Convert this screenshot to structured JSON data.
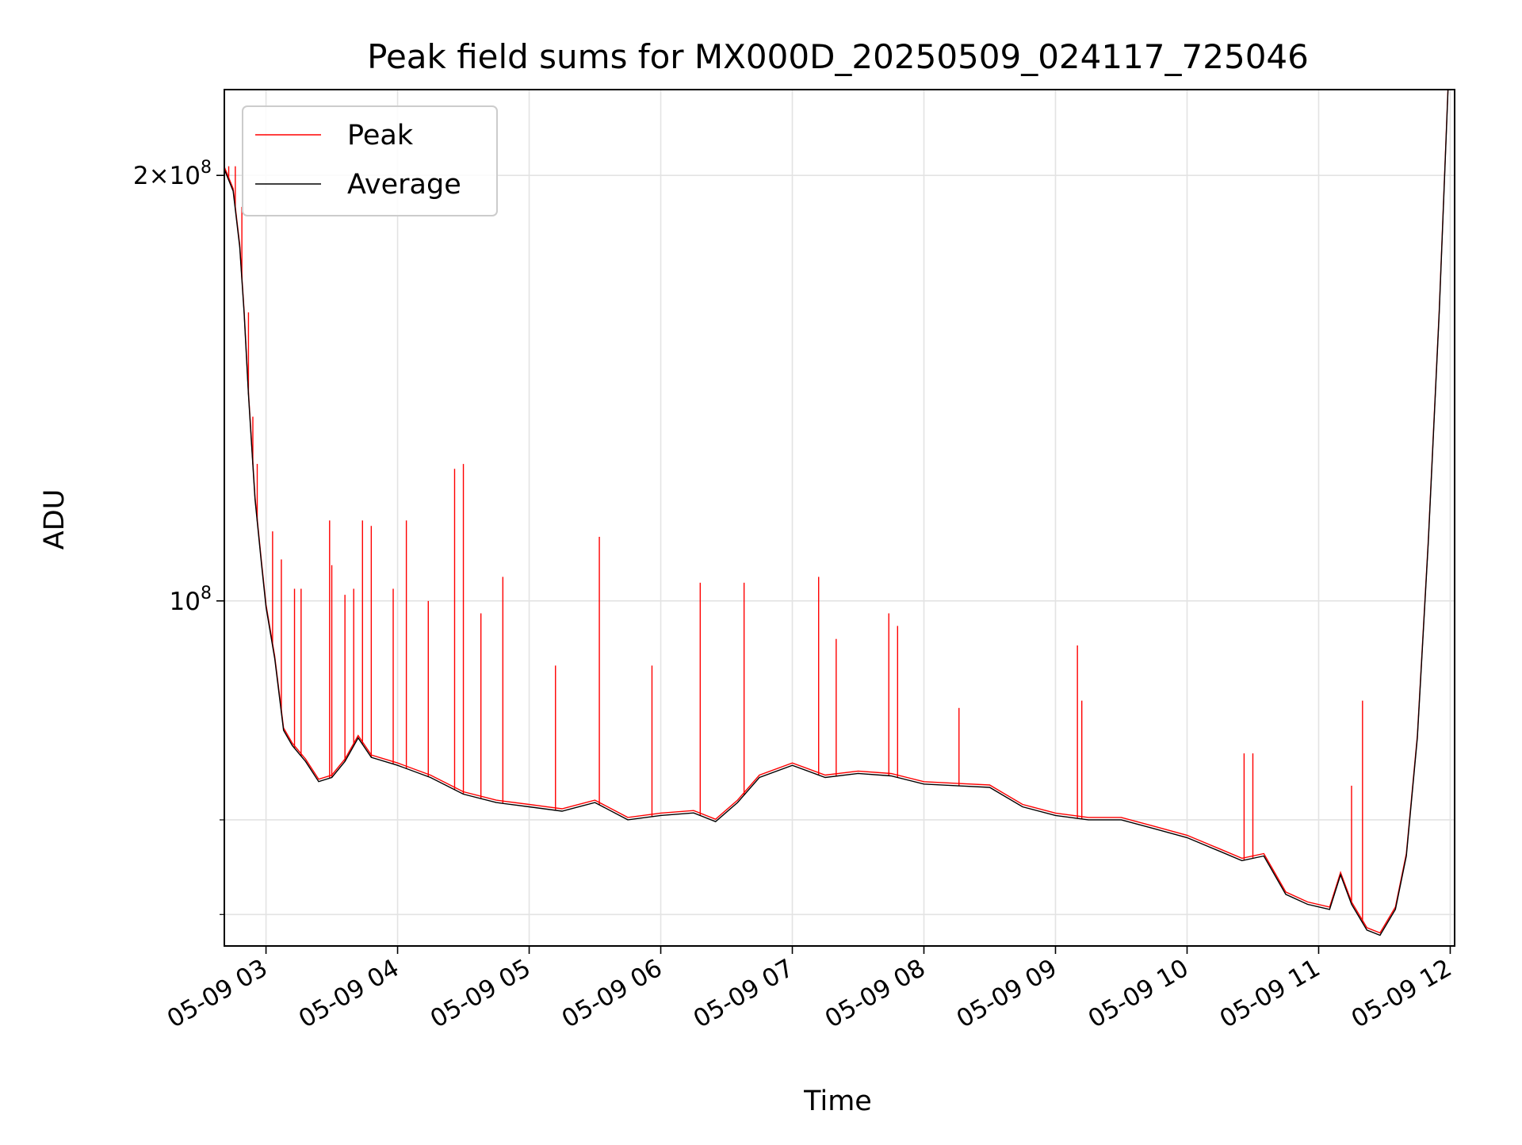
{
  "chart_data": {
    "type": "line",
    "title": "Peak field sums for MX000D_20250509_024117_725046",
    "xlabel": "Time",
    "ylabel": "ADU",
    "y_scale": "log",
    "ylim": [
      57000000,
      230000000
    ],
    "xlim": [
      "2025-05-09 02:41",
      "2025-05-09 12:02"
    ],
    "grid": true,
    "legend_position": "top-left",
    "x_tick_labels": [
      "05-09 03",
      "05-09 04",
      "05-09 05",
      "05-09 06",
      "05-09 07",
      "05-09 08",
      "05-09 09",
      "05-09 10",
      "05-09 11",
      "05-09 12"
    ],
    "x_tick_times": [
      "2025-05-09 03:00",
      "2025-05-09 04:00",
      "2025-05-09 05:00",
      "2025-05-09 06:00",
      "2025-05-09 07:00",
      "2025-05-09 08:00",
      "2025-05-09 09:00",
      "2025-05-09 10:00",
      "2025-05-09 11:00",
      "2025-05-09 12:00"
    ],
    "y_major_ticks": [
      {
        "value": 100000000,
        "mantissa": "",
        "exp": "8"
      },
      {
        "value": 200000000,
        "mantissa": "2",
        "exp": "8"
      }
    ],
    "y_minor_ticks": [
      60000000,
      70000000
    ],
    "series": [
      {
        "name": "Average",
        "color": "#000000",
        "points": [
          [
            "2025-05-09 02:41",
            202000000
          ],
          [
            "2025-05-09 02:45",
            195000000
          ],
          [
            "2025-05-09 02:48",
            178000000
          ],
          [
            "2025-05-09 02:50",
            160000000
          ],
          [
            "2025-05-09 02:52",
            140000000
          ],
          [
            "2025-05-09 02:55",
            118000000
          ],
          [
            "2025-05-09 02:58",
            106000000
          ],
          [
            "2025-05-09 03:00",
            99000000
          ],
          [
            "2025-05-09 03:04",
            91000000
          ],
          [
            "2025-05-09 03:08",
            81000000
          ],
          [
            "2025-05-09 03:12",
            79000000
          ],
          [
            "2025-05-09 03:18",
            77000000
          ],
          [
            "2025-05-09 03:24",
            74500000
          ],
          [
            "2025-05-09 03:30",
            75000000
          ],
          [
            "2025-05-09 03:36",
            77000000
          ],
          [
            "2025-05-09 03:42",
            80000000
          ],
          [
            "2025-05-09 03:48",
            77500000
          ],
          [
            "2025-05-09 04:00",
            76500000
          ],
          [
            "2025-05-09 04:15",
            75000000
          ],
          [
            "2025-05-09 04:30",
            73000000
          ],
          [
            "2025-05-09 04:45",
            72000000
          ],
          [
            "2025-05-09 05:00",
            71500000
          ],
          [
            "2025-05-09 05:15",
            71000000
          ],
          [
            "2025-05-09 05:30",
            72000000
          ],
          [
            "2025-05-09 05:45",
            70000000
          ],
          [
            "2025-05-09 06:00",
            70500000
          ],
          [
            "2025-05-09 06:15",
            70800000
          ],
          [
            "2025-05-09 06:25",
            69800000
          ],
          [
            "2025-05-09 06:35",
            72000000
          ],
          [
            "2025-05-09 06:45",
            75000000
          ],
          [
            "2025-05-09 07:00",
            76500000
          ],
          [
            "2025-05-09 07:15",
            75000000
          ],
          [
            "2025-05-09 07:30",
            75500000
          ],
          [
            "2025-05-09 07:45",
            75200000
          ],
          [
            "2025-05-09 08:00",
            74200000
          ],
          [
            "2025-05-09 08:15",
            74000000
          ],
          [
            "2025-05-09 08:30",
            73800000
          ],
          [
            "2025-05-09 08:45",
            71500000
          ],
          [
            "2025-05-09 09:00",
            70500000
          ],
          [
            "2025-05-09 09:15",
            70000000
          ],
          [
            "2025-05-09 09:30",
            70000000
          ],
          [
            "2025-05-09 09:45",
            69000000
          ],
          [
            "2025-05-09 10:00",
            68000000
          ],
          [
            "2025-05-09 10:15",
            66500000
          ],
          [
            "2025-05-09 10:25",
            65500000
          ],
          [
            "2025-05-09 10:35",
            66000000
          ],
          [
            "2025-05-09 10:45",
            62000000
          ],
          [
            "2025-05-09 10:55",
            61000000
          ],
          [
            "2025-05-09 11:05",
            60500000
          ],
          [
            "2025-05-09 11:10",
            64000000
          ],
          [
            "2025-05-09 11:15",
            61000000
          ],
          [
            "2025-05-09 11:22",
            58500000
          ],
          [
            "2025-05-09 11:28",
            58000000
          ],
          [
            "2025-05-09 11:35",
            60500000
          ],
          [
            "2025-05-09 11:40",
            66000000
          ],
          [
            "2025-05-09 11:45",
            80000000
          ],
          [
            "2025-05-09 11:50",
            110000000
          ],
          [
            "2025-05-09 11:55",
            160000000
          ],
          [
            "2025-05-09 11:59",
            230000000
          ]
        ]
      },
      {
        "name": "Peak",
        "color": "#ff0000",
        "spikes": [
          [
            "2025-05-09 02:43",
            203000000
          ],
          [
            "2025-05-09 02:46",
            203000000
          ],
          [
            "2025-05-09 02:49",
            190000000
          ],
          [
            "2025-05-09 02:52",
            160000000
          ],
          [
            "2025-05-09 02:54",
            135000000
          ],
          [
            "2025-05-09 02:56",
            125000000
          ],
          [
            "2025-05-09 03:03",
            112000000
          ],
          [
            "2025-05-09 03:07",
            107000000
          ],
          [
            "2025-05-09 03:13",
            102000000
          ],
          [
            "2025-05-09 03:16",
            102000000
          ],
          [
            "2025-05-09 03:29",
            114000000
          ],
          [
            "2025-05-09 03:30",
            106000000
          ],
          [
            "2025-05-09 03:36",
            101000000
          ],
          [
            "2025-05-09 03:40",
            102000000
          ],
          [
            "2025-05-09 03:44",
            114000000
          ],
          [
            "2025-05-09 03:48",
            113000000
          ],
          [
            "2025-05-09 03:58",
            102000000
          ],
          [
            "2025-05-09 04:04",
            114000000
          ],
          [
            "2025-05-09 04:14",
            100000000
          ],
          [
            "2025-05-09 04:26",
            124000000
          ],
          [
            "2025-05-09 04:30",
            125000000
          ],
          [
            "2025-05-09 04:38",
            98000000
          ],
          [
            "2025-05-09 04:48",
            104000000
          ],
          [
            "2025-05-09 05:12",
            90000000
          ],
          [
            "2025-05-09 05:32",
            111000000
          ],
          [
            "2025-05-09 05:56",
            90000000
          ],
          [
            "2025-05-09 06:18",
            103000000
          ],
          [
            "2025-05-09 06:38",
            103000000
          ],
          [
            "2025-05-09 07:12",
            104000000
          ],
          [
            "2025-05-09 07:20",
            94000000
          ],
          [
            "2025-05-09 07:44",
            98000000
          ],
          [
            "2025-05-09 07:48",
            96000000
          ],
          [
            "2025-05-09 08:16",
            84000000
          ],
          [
            "2025-05-09 09:10",
            93000000
          ],
          [
            "2025-05-09 09:12",
            85000000
          ],
          [
            "2025-05-09 10:26",
            78000000
          ],
          [
            "2025-05-09 10:30",
            78000000
          ],
          [
            "2025-05-09 11:15",
            74000000
          ],
          [
            "2025-05-09 11:20",
            85000000
          ]
        ]
      }
    ]
  }
}
